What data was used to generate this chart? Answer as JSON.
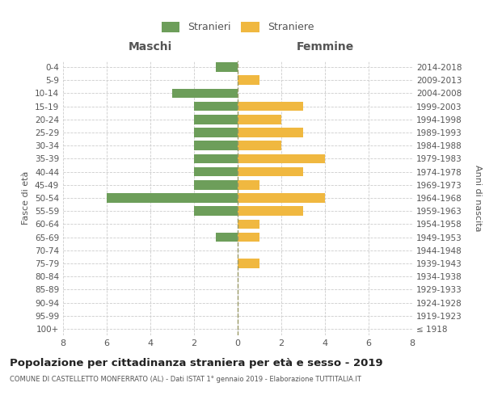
{
  "age_groups": [
    "100+",
    "95-99",
    "90-94",
    "85-89",
    "80-84",
    "75-79",
    "70-74",
    "65-69",
    "60-64",
    "55-59",
    "50-54",
    "45-49",
    "40-44",
    "35-39",
    "30-34",
    "25-29",
    "20-24",
    "15-19",
    "10-14",
    "5-9",
    "0-4"
  ],
  "birth_years": [
    "≤ 1918",
    "1919-1923",
    "1924-1928",
    "1929-1933",
    "1934-1938",
    "1939-1943",
    "1944-1948",
    "1949-1953",
    "1954-1958",
    "1959-1963",
    "1964-1968",
    "1969-1973",
    "1974-1978",
    "1979-1983",
    "1984-1988",
    "1989-1993",
    "1994-1998",
    "1999-2003",
    "2004-2008",
    "2009-2013",
    "2014-2018"
  ],
  "males": [
    0,
    0,
    0,
    0,
    0,
    0,
    0,
    1,
    0,
    2,
    6,
    2,
    2,
    2,
    2,
    2,
    2,
    2,
    3,
    0,
    1
  ],
  "females": [
    0,
    0,
    0,
    0,
    0,
    1,
    0,
    1,
    1,
    3,
    4,
    1,
    3,
    4,
    2,
    3,
    2,
    3,
    0,
    1,
    0
  ],
  "male_color": "#6d9e5a",
  "female_color": "#f0b840",
  "title": "Popolazione per cittadinanza straniera per età e sesso - 2019",
  "subtitle": "COMUNE DI CASTELLETTO MONFERRATO (AL) - Dati ISTAT 1° gennaio 2019 - Elaborazione TUTTITALIA.IT",
  "ylabel_left": "Fasce di età",
  "ylabel_right": "Anni di nascita",
  "xlabel_left": "Maschi",
  "xlabel_right": "Femmine",
  "legend_male": "Stranieri",
  "legend_female": "Straniere",
  "xlim": 8,
  "background_color": "#ffffff",
  "grid_color": "#cccccc",
  "dashed_line_color": "#999966"
}
